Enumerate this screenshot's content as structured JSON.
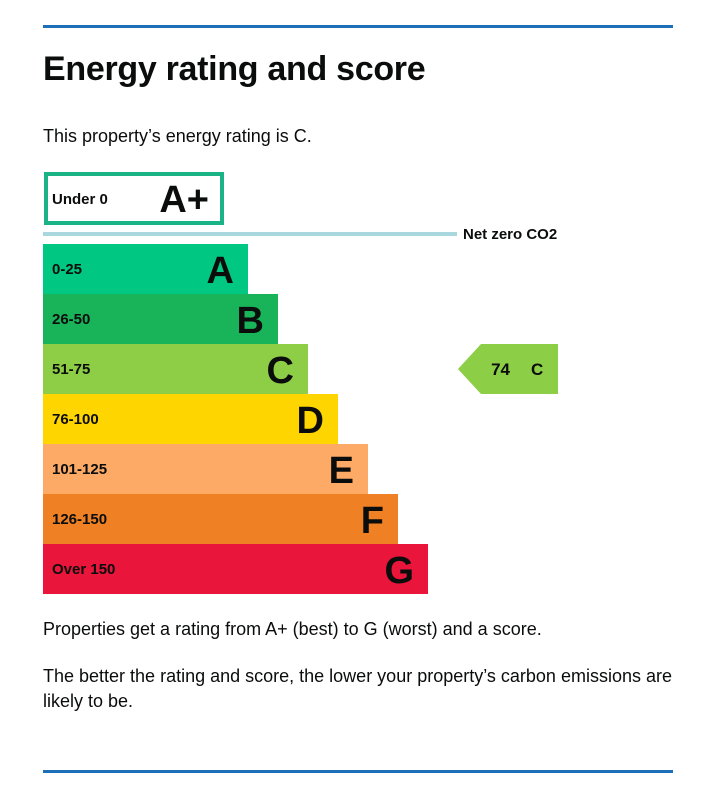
{
  "page": {
    "title": "Energy rating and score",
    "intro": "This property’s energy rating is C.",
    "footer_line1": "Properties get a rating from A+ (best) to G (worst) and a score.",
    "footer_line2": "The better the rating and score, the lower your property’s carbon emissions are likely to be.",
    "accent_color": "#1d70b8"
  },
  "chart_data": {
    "type": "bar",
    "net_zero_label": "Net zero CO2",
    "net_zero_color": "#a8d7de",
    "current": {
      "score": 74,
      "band": "C",
      "score_label": "74",
      "band_label": "C",
      "color": "#8cce46"
    },
    "bands": [
      {
        "letter": "A+",
        "range": "Under 0",
        "color": "#ffffff",
        "outline": "#19b386"
      },
      {
        "letter": "A",
        "range": "0-25",
        "color": "#00c781"
      },
      {
        "letter": "B",
        "range": "26-50",
        "color": "#19b459"
      },
      {
        "letter": "C",
        "range": "51-75",
        "color": "#8dce46"
      },
      {
        "letter": "D",
        "range": "76-100",
        "color": "#ffd500"
      },
      {
        "letter": "E",
        "range": "101-125",
        "color": "#fcaa65"
      },
      {
        "letter": "F",
        "range": "126-150",
        "color": "#ef8023"
      },
      {
        "letter": "G",
        "range": "Over 150",
        "color": "#e9153b"
      }
    ]
  }
}
